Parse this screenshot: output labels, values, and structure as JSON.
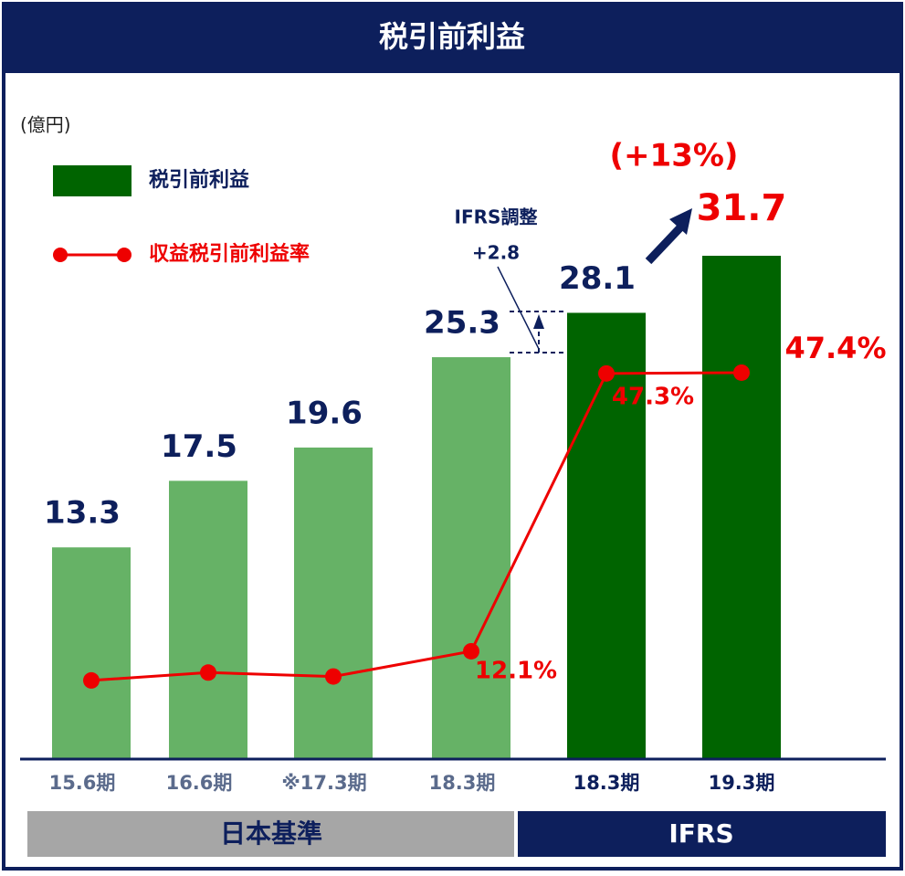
{
  "chart_data": {
    "type": "bar_line",
    "title": "税引前利益",
    "unit_label": "(億円)",
    "categories": [
      "15.6期",
      "16.6期",
      "※17.3期",
      "18.3期",
      "18.3期",
      "19.3期"
    ],
    "category_colors": [
      "#5b6b8c",
      "#5b6b8c",
      "#5b6b8c",
      "#5b6b8c",
      "#0d1f5c",
      "#0d1f5c"
    ],
    "series": [
      {
        "name": "税引前利益",
        "type": "bar",
        "color": "#006400",
        "colors": [
          "#66b266",
          "#66b266",
          "#66b266",
          "#66b266",
          "#006400",
          "#006400"
        ],
        "values": [
          13.3,
          17.5,
          19.6,
          25.3,
          28.1,
          31.7
        ]
      },
      {
        "name": "収益税引前利益率",
        "type": "line",
        "color": "#ee0000",
        "values": [
          8.4,
          9.4,
          8.9,
          12.1,
          47.3,
          47.4
        ],
        "value_labels": [
          null,
          null,
          null,
          "12.1%",
          "47.3%",
          "47.4%"
        ]
      }
    ],
    "annotations": [
      "IFRS調整",
      "+2.8",
      "(+13%)"
    ],
    "groups": [
      "日本基準",
      "IFRS"
    ]
  }
}
